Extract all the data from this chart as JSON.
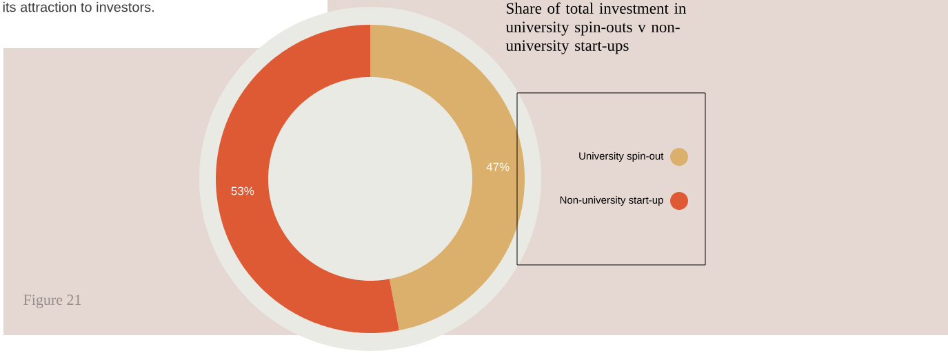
{
  "chart_data": {
    "type": "donut",
    "title": "Share of total investment in university spin-outs v non-university start-ups",
    "categories": [
      "University spin-out",
      "Non-university start-up"
    ],
    "values": [
      47,
      53
    ],
    "colors": [
      "#dbb06c",
      "#de5a35"
    ],
    "value_labels": [
      "47%",
      "53%"
    ],
    "legend": "right",
    "annotations": [
      "its attraction to investors.",
      "Figure 21"
    ]
  }
}
